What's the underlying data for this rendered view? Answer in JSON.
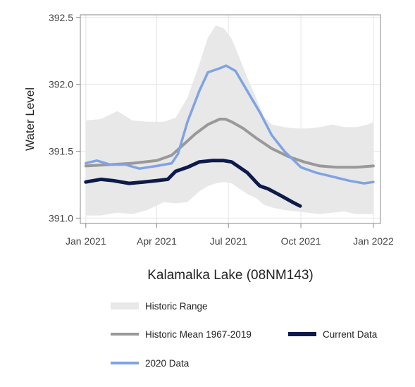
{
  "chart_data": {
    "type": "line",
    "title": "Kalamalka Lake (08NM143)",
    "ylabel": "Water Level",
    "xlabel": "",
    "x_range": [
      "2020-12-25",
      "2022-01-10"
    ],
    "ylim": [
      390.96,
      392.52
    ],
    "x_ticks": [
      {
        "date": "2021-01-01",
        "label": "Jan 2021"
      },
      {
        "date": "2021-04-01",
        "label": "Apr 2021"
      },
      {
        "date": "2021-07-01",
        "label": "Jul 2021"
      },
      {
        "date": "2021-10-01",
        "label": "Oct 2021"
      },
      {
        "date": "2022-01-01",
        "label": "Jan 2022"
      }
    ],
    "y_ticks": [
      {
        "value": 391.0,
        "label": "391.0"
      },
      {
        "value": 391.5,
        "label": "391.5"
      },
      {
        "value": 392.0,
        "label": "392.0"
      },
      {
        "value": 392.5,
        "label": "392.5"
      }
    ],
    "grid": true,
    "legend_position": "bottom",
    "series": [
      {
        "name": "Historic Range",
        "kind": "band",
        "color": "#e8e8e8",
        "x": [
          "2021-01-01",
          "2021-01-20",
          "2021-02-10",
          "2021-03-01",
          "2021-03-20",
          "2021-04-10",
          "2021-04-25",
          "2021-05-10",
          "2021-05-25",
          "2021-06-05",
          "2021-06-15",
          "2021-06-25",
          "2021-07-05",
          "2021-07-15",
          "2021-07-25",
          "2021-08-05",
          "2021-08-15",
          "2021-08-25",
          "2021-09-10",
          "2021-09-25",
          "2021-10-10",
          "2021-10-25",
          "2021-11-10",
          "2021-11-25",
          "2021-12-10",
          "2021-12-25",
          "2022-01-01"
        ],
        "upper": [
          391.73,
          391.74,
          391.8,
          391.73,
          391.72,
          391.72,
          391.75,
          391.9,
          392.15,
          392.35,
          392.44,
          392.42,
          392.34,
          392.2,
          392.05,
          391.9,
          391.76,
          391.7,
          391.68,
          391.67,
          391.67,
          391.68,
          391.7,
          391.68,
          391.68,
          391.7,
          391.72
        ],
        "lower": [
          391.02,
          391.02,
          391.04,
          391.03,
          391.06,
          391.12,
          391.11,
          391.12,
          391.2,
          391.24,
          391.26,
          391.27,
          391.26,
          391.22,
          391.18,
          391.15,
          391.1,
          391.08,
          391.06,
          391.05,
          391.04,
          391.03,
          391.04,
          391.05,
          391.03,
          391.03,
          391.03
        ]
      },
      {
        "name": "Historic Mean 1967-2019",
        "kind": "line",
        "color": "#999999",
        "x": [
          "2021-01-01",
          "2021-02-01",
          "2021-03-01",
          "2021-04-01",
          "2021-04-20",
          "2021-05-05",
          "2021-05-20",
          "2021-06-05",
          "2021-06-20",
          "2021-06-27",
          "2021-07-05",
          "2021-07-20",
          "2021-08-05",
          "2021-08-25",
          "2021-09-15",
          "2021-10-05",
          "2021-10-25",
          "2021-11-15",
          "2021-12-10",
          "2022-01-01"
        ],
        "values": [
          391.39,
          391.4,
          391.41,
          391.43,
          391.47,
          391.55,
          391.63,
          391.7,
          391.74,
          391.74,
          391.72,
          391.67,
          391.6,
          391.52,
          391.46,
          391.42,
          391.39,
          391.38,
          391.38,
          391.39
        ]
      },
      {
        "name": "Current Data",
        "kind": "line",
        "color": "#0d1a4a",
        "x": [
          "2021-01-01",
          "2021-01-20",
          "2021-02-05",
          "2021-02-25",
          "2021-03-15",
          "2021-04-01",
          "2021-04-15",
          "2021-04-25",
          "2021-05-10",
          "2021-05-25",
          "2021-06-10",
          "2021-06-25",
          "2021-07-05",
          "2021-07-15",
          "2021-07-25",
          "2021-08-05",
          "2021-08-10",
          "2021-08-20",
          "2021-09-05",
          "2021-09-20",
          "2021-09-30"
        ],
        "values": [
          391.27,
          391.29,
          391.28,
          391.26,
          391.27,
          391.28,
          391.29,
          391.35,
          391.38,
          391.42,
          391.43,
          391.43,
          391.42,
          391.38,
          391.34,
          391.27,
          391.24,
          391.22,
          391.17,
          391.12,
          391.09
        ]
      },
      {
        "name": "2020 Data",
        "kind": "line",
        "color": "#7fa3e3",
        "x": [
          "2021-01-01",
          "2021-01-15",
          "2021-02-01",
          "2021-02-20",
          "2021-03-10",
          "2021-04-01",
          "2021-04-20",
          "2021-04-28",
          "2021-05-10",
          "2021-05-25",
          "2021-06-05",
          "2021-06-20",
          "2021-06-28",
          "2021-07-10",
          "2021-07-25",
          "2021-08-10",
          "2021-08-25",
          "2021-09-10",
          "2021-10-01",
          "2021-10-20",
          "2021-11-10",
          "2021-12-01",
          "2021-12-20",
          "2022-01-01"
        ],
        "values": [
          391.41,
          391.43,
          391.4,
          391.4,
          391.37,
          391.39,
          391.41,
          391.48,
          391.72,
          391.95,
          392.09,
          392.12,
          392.14,
          392.1,
          391.95,
          391.79,
          391.62,
          391.5,
          391.38,
          391.34,
          391.31,
          391.28,
          391.26,
          391.27
        ]
      }
    ]
  },
  "legend": {
    "items": [
      {
        "label": "Historic Range",
        "color": "#e8e8e8",
        "kind": "band"
      },
      {
        "label": "Historic Mean 1967-2019",
        "color": "#999999",
        "kind": "line"
      },
      {
        "label": "Current Data",
        "color": "#0d1a4a",
        "kind": "line"
      },
      {
        "label": "2020 Data",
        "color": "#7fa3e3",
        "kind": "line"
      }
    ]
  }
}
